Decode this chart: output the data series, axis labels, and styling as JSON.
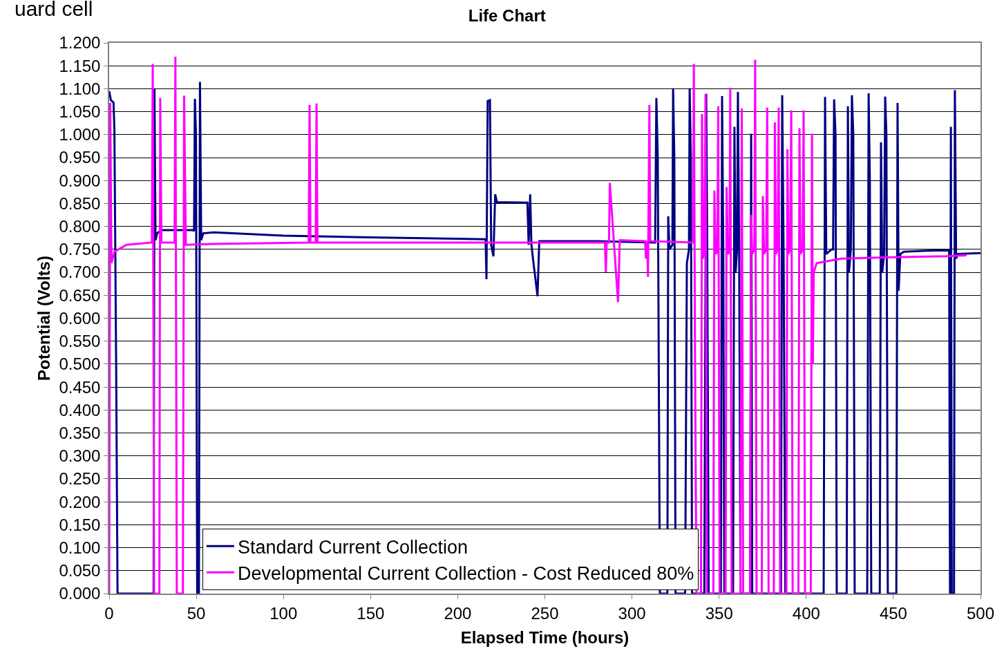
{
  "chart_data": {
    "type": "line",
    "title": "Life Chart",
    "xlabel": "Elapsed Time (hours)",
    "ylabel": "Potential (Volts)",
    "annotations": [
      "uard cell"
    ],
    "xlim": [
      0,
      500
    ],
    "xticks": [
      0,
      50,
      100,
      150,
      200,
      250,
      300,
      350,
      400,
      450,
      500
    ],
    "ylim": [
      0,
      1.2
    ],
    "yticks": [
      {
        "value": 0,
        "label": "0.000"
      },
      {
        "value": 0.05,
        "label": "0.050"
      },
      {
        "value": 0.1,
        "label": "0.100"
      },
      {
        "value": 0.15,
        "label": "0.150"
      },
      {
        "value": 0.2,
        "label": "0.200"
      },
      {
        "value": 0.25,
        "label": "0.250"
      },
      {
        "value": 0.3,
        "label": "0.300"
      },
      {
        "value": 0.35,
        "label": "0.350"
      },
      {
        "value": 0.4,
        "label": "0.400"
      },
      {
        "value": 0.45,
        "label": "0.450"
      },
      {
        "value": 0.5,
        "label": "0.500"
      },
      {
        "value": 0.55,
        "label": "0.550"
      },
      {
        "value": 0.6,
        "label": "0.600"
      },
      {
        "value": 0.65,
        "label": "0.650"
      },
      {
        "value": 0.7,
        "label": "0.700"
      },
      {
        "value": 0.75,
        "label": "0.750"
      },
      {
        "value": 0.8,
        "label": "0.800"
      },
      {
        "value": 0.85,
        "label": "0.850"
      },
      {
        "value": 0.9,
        "label": "0.900"
      },
      {
        "value": 0.95,
        "label": "0.950"
      },
      {
        "value": 1.0,
        "label": "1.000"
      },
      {
        "value": 1.05,
        "label": "1.050"
      },
      {
        "value": 1.1,
        "label": "1.100"
      },
      {
        "value": 1.15,
        "label": "1.150"
      },
      {
        "value": 1.2,
        "label": "1.200"
      }
    ],
    "grid": "y",
    "legend": "bottom",
    "marker": "none",
    "line_style": "solid",
    "series": [
      {
        "name": "Standard Current Collection",
        "color": "#000080",
        "x": [
          0,
          1,
          2.5,
          3,
          4,
          4.8,
          25.5,
          26,
          26.6,
          27.5,
          30,
          48,
          48.7,
          49.2,
          49.8,
          50.5,
          51.5,
          52.1,
          52.8,
          54,
          60,
          100,
          150,
          200,
          216,
          216.5,
          217.2,
          218.5,
          219.2,
          220.5,
          221.5,
          222.5,
          240,
          240.7,
          241.6,
          242.3,
          243.5,
          245.8,
          246.8,
          280,
          313.3,
          314,
          314.8,
          316,
          320.3,
          320.8,
          321.5,
          323.2,
          323.6,
          324.3,
          325,
          330.5,
          331.5,
          332.7,
          333.1,
          333.8,
          334.5,
          341.5,
          342.6,
          343.2,
          344,
          351,
          351.7,
          352.4,
          353,
          358,
          358.8,
          359.5,
          360.3,
          360.8,
          361.5,
          362.3,
          367.8,
          368.4,
          369,
          385.5,
          386.2,
          387,
          388,
          410,
          410.8,
          411.5,
          414.5,
          415.4,
          416,
          416.8,
          417.5,
          423.2,
          423.9,
          424.5,
          425.6,
          426.2,
          427,
          427.8,
          435,
          435.8,
          436.5,
          437.3,
          442.2,
          442.9,
          443.6,
          444.7,
          445.3,
          446,
          446.8,
          451.7,
          452.4,
          453,
          454,
          456,
          470,
          482,
          482.5,
          483,
          483.5,
          484.8,
          485.3,
          486,
          487,
          500
        ],
        "values": [
          1.095,
          1.075,
          1.07,
          1.01,
          0.5,
          0,
          0,
          1.1,
          0.77,
          0.785,
          0.792,
          0.792,
          0.79,
          1.078,
          1.0,
          0,
          0,
          1.115,
          0.77,
          0.785,
          0.787,
          0.78,
          0.776,
          0.773,
          0.772,
          0.685,
          1.073,
          1.075,
          0.76,
          0.735,
          0.87,
          0.853,
          0.852,
          0.76,
          0.87,
          0.76,
          0.72,
          0.648,
          0.768,
          0.768,
          0.765,
          1.08,
          0.95,
          0,
          0,
          0.822,
          0.75,
          0.76,
          1.101,
          0.95,
          0,
          0,
          0.72,
          0.75,
          1.101,
          0.95,
          0,
          0,
          1.089,
          0.75,
          0,
          0,
          1.084,
          0.75,
          0,
          0,
          1.017,
          0.7,
          0.75,
          1.093,
          0.75,
          0,
          0,
          1.002,
          0,
          0,
          1.086,
          0.75,
          0,
          0,
          1.082,
          0.74,
          0.75,
          0.75,
          1.077,
          1.0,
          0,
          0,
          1.062,
          0.7,
          0.75,
          1.086,
          1.0,
          0,
          0,
          1.09,
          0.9,
          0,
          0,
          0.983,
          0.7,
          0.74,
          1.083,
          1.0,
          0,
          0,
          1.069,
          0.66,
          0.74,
          0.745,
          0.747,
          0.748,
          0,
          1.017,
          0,
          0,
          1.097,
          0.73,
          0.74,
          0.742
        ]
      },
      {
        "name": "Developmental Current Collection - Cost Reduced 80%",
        "color": "#ff00ff",
        "x": [
          0,
          0.6,
          1.3,
          3,
          10,
          24.5,
          25,
          25.8,
          28.8,
          29.3,
          30,
          37.5,
          38,
          38.8,
          42.3,
          43,
          44,
          60,
          114.5,
          115,
          115.5,
          118.5,
          119,
          119.5,
          200,
          284.5,
          285,
          285.5,
          286.8,
          287.3,
          292,
          293,
          307.5,
          308,
          308.7,
          309.2,
          310,
          310.5,
          335,
          335.5,
          336.2,
          337,
          339.6,
          340.2,
          340.8,
          341.6,
          342.2,
          343,
          346.7,
          347.3,
          348,
          349,
          349.5,
          350.3,
          353.7,
          354.3,
          355,
          356,
          356.4,
          357.2,
          362.2,
          363,
          363.8,
          367.8,
          368.4,
          369,
          370.2,
          370.7,
          371.5,
          374.5,
          375.1,
          375.8,
          377,
          377.6,
          378.4,
          381.4,
          382,
          382.6,
          383.6,
          384.2,
          385,
          388.6,
          389.2,
          389.8,
          390.8,
          391.4,
          392.2,
          395.5,
          396.1,
          396.7,
          397.9,
          398.5,
          399.3,
          402.6,
          403.3,
          403.8,
          404.3,
          406,
          420,
          450,
          480,
          492
        ],
        "values": [
          0,
          1.069,
          0.72,
          0.745,
          0.76,
          0.765,
          1.154,
          0,
          0,
          1.08,
          0.765,
          0.765,
          1.17,
          0,
          0,
          1.085,
          0.76,
          0.762,
          0.765,
          1.065,
          0.765,
          0.765,
          1.068,
          0.765,
          0.765,
          0.765,
          0.7,
          0.765,
          0.765,
          0.895,
          0.635,
          0.77,
          0.768,
          0.73,
          0.768,
          0.69,
          1.065,
          0.768,
          0.765,
          1.154,
          0.5,
          0,
          0,
          1.045,
          0.73,
          0.75,
          1.088,
          0,
          0,
          0.878,
          0.74,
          0.745,
          1.062,
          0,
          0,
          0.886,
          0.74,
          0.745,
          1.102,
          0,
          0,
          1.057,
          0,
          0,
          0.825,
          0.74,
          0.75,
          1.163,
          0,
          0,
          0.866,
          0.74,
          0.75,
          1.059,
          0,
          0,
          1.027,
          0.74,
          0.75,
          1.059,
          0,
          0,
          0.968,
          0.74,
          0.75,
          1.053,
          0,
          0,
          1.014,
          0.74,
          0.75,
          1.053,
          0,
          0,
          1.002,
          0.5,
          0.7,
          0.72,
          0.73,
          0.733,
          0.735,
          0.737
        ]
      }
    ]
  }
}
